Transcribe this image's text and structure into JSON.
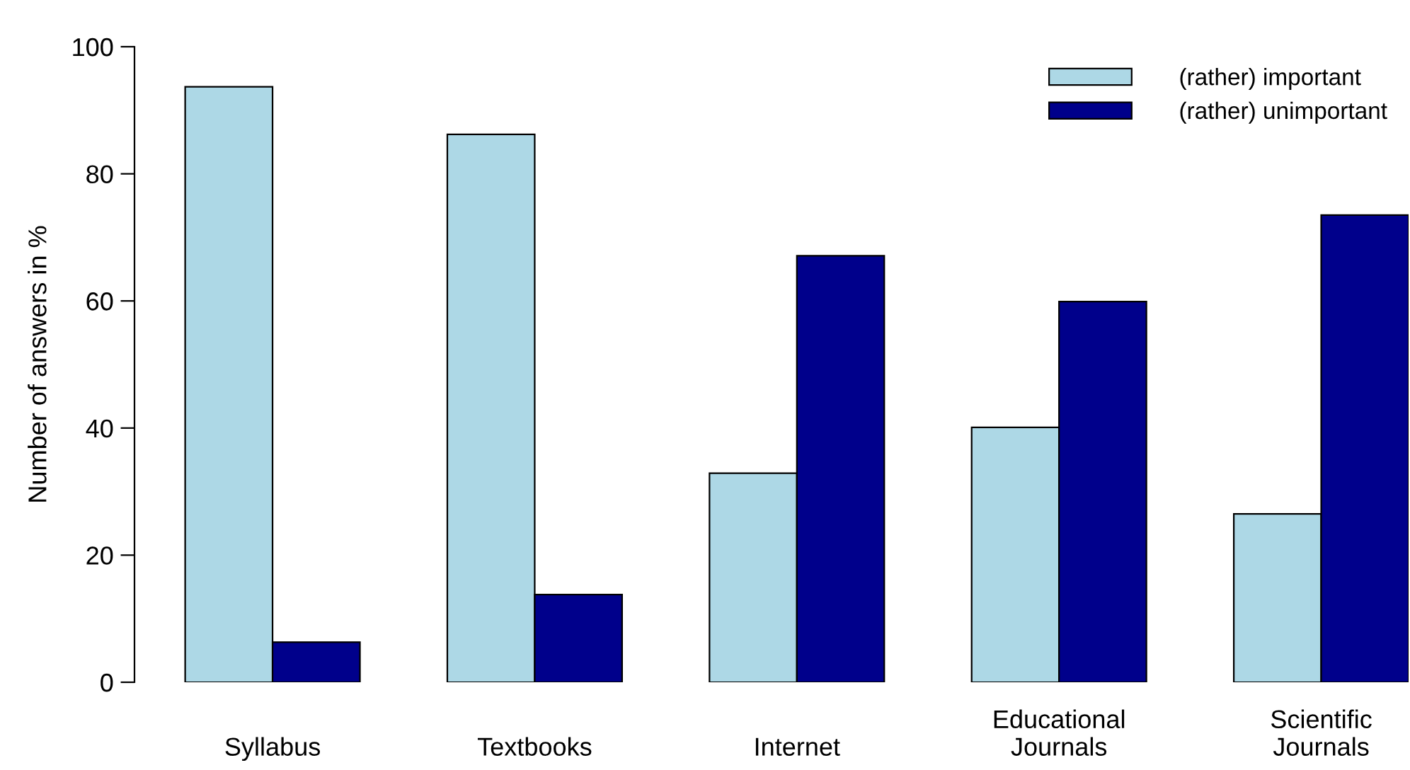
{
  "chart_data": {
    "type": "bar",
    "ylabel": "Number of answers in %",
    "categories": [
      "Syllabus",
      "Textbooks",
      "Internet",
      "Educational\nJournals",
      "Scientific\nJournals"
    ],
    "series": [
      {
        "name": "(rather) important",
        "color": "#add8e6",
        "values": [
          93.7,
          86.2,
          32.9,
          40.1,
          26.5
        ]
      },
      {
        "name": "(rather) unimportant",
        "color": "#00008b",
        "values": [
          6.3,
          13.8,
          67.1,
          59.9,
          73.5
        ]
      }
    ],
    "ylim": [
      0,
      100
    ],
    "yticks": [
      0,
      20,
      40,
      60,
      80,
      100
    ],
    "grid": false,
    "legend": "top right"
  }
}
